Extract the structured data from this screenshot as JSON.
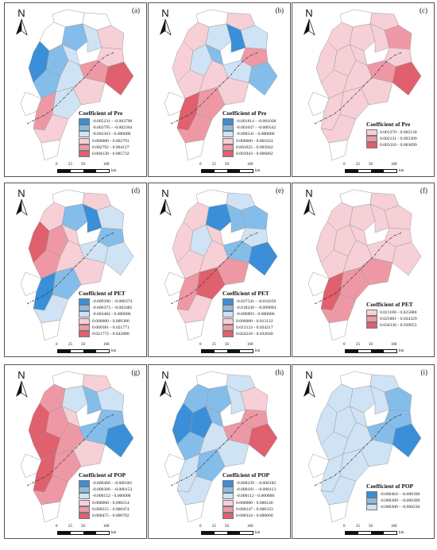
{
  "colors": {
    "blue_dark": "#3a8fd8",
    "blue_mid": "#85bdea",
    "blue_light": "#cfe3f5",
    "red_light": "#f6d0d6",
    "red_mid": "#ef98a5",
    "red_dark": "#e0606e",
    "blank": "#ffffff",
    "outline": "#9a9a9a",
    "river": "#333333"
  },
  "compass": "N",
  "scale_bar": {
    "ticks": [
      "0",
      "25",
      "50",
      "100"
    ],
    "unit": "km"
  },
  "panels": [
    {
      "label": "(a)",
      "legend_title": "Coefficient of Pre",
      "classes": [
        {
          "range": "-0.005231 - -0.003796",
          "color": "blue_dark"
        },
        {
          "range": "-0.003795 - -0.002364",
          "color": "blue_mid"
        },
        {
          "range": "-0.002363 - 0.000000",
          "color": "blue_light"
        },
        {
          "range": "0.000000 - 0.002791",
          "color": "red_light"
        },
        {
          "range": "0.002792 - 0.004127",
          "color": "red_mid"
        },
        {
          "range": "0.004128 - 0.005732",
          "color": "red_dark"
        }
      ],
      "regions": [
        "blank",
        "blank",
        "blue_mid",
        "blue_light",
        "blank",
        "blue_dark",
        "blue_mid",
        "blue_light",
        "red_light",
        "red_light",
        "blue_mid",
        "blue_light",
        "red_mid",
        "red_dark",
        "red_light",
        "blue_light",
        "red_mid",
        "red_light",
        "blank",
        "blank"
      ]
    },
    {
      "label": "(b)",
      "legend_title": "Coefficient of Pre",
      "classes": [
        {
          "range": "-0.001814 - -0.001038",
          "color": "blue_dark"
        },
        {
          "range": "-0.001037 - -0.000542",
          "color": "blue_mid"
        },
        {
          "range": "-0.000541 - 0.000000",
          "color": "blue_light"
        },
        {
          "range": "0.000000 - 0.001624",
          "color": "red_light"
        },
        {
          "range": "0.001625 - 0.003942",
          "color": "red_mid"
        },
        {
          "range": "0.003943 - 0.006802",
          "color": "red_dark"
        }
      ],
      "regions": [
        "blank",
        "red_light",
        "blue_light",
        "blue_dark",
        "red_light",
        "red_light",
        "blue_light",
        "blue_mid",
        "blue_light",
        "red_mid",
        "red_light",
        "red_light",
        "blue_light",
        "blue_mid",
        "red_light",
        "red_mid",
        "red_dark",
        "red_mid",
        "blank",
        "blank"
      ]
    },
    {
      "label": "(c)",
      "legend_title": "Coefficient of Pre",
      "classes": [
        {
          "range": "0.001270 - 0.002130",
          "color": "red_light"
        },
        {
          "range": "0.002131 - 0.003309",
          "color": "red_mid"
        },
        {
          "range": "0.003310 - 0.003699",
          "color": "red_dark"
        }
      ],
      "regions": [
        "blank",
        "red_light",
        "red_light",
        "red_light",
        "red_light",
        "red_light",
        "red_light",
        "red_light",
        "red_mid",
        "red_light",
        "red_light",
        "red_light",
        "red_mid",
        "red_dark",
        "red_light",
        "red_light",
        "red_light",
        "red_light",
        "blank",
        "blank"
      ]
    },
    {
      "label": "(d)",
      "legend_title": "Coefficient of PET",
      "classes": [
        {
          "range": "-0.009390 - -0.006374",
          "color": "blue_dark"
        },
        {
          "range": "-0.006373 - -0.003485",
          "color": "blue_mid"
        },
        {
          "range": "-0.003484 - 0.000000",
          "color": "blue_light"
        },
        {
          "range": "0.000000 - 0.009380",
          "color": "red_light"
        },
        {
          "range": "0.009381 - 0.021771",
          "color": "red_mid"
        },
        {
          "range": "0.021772 - 0.042888",
          "color": "red_dark"
        }
      ],
      "regions": [
        "blank",
        "red_light",
        "blue_mid",
        "blue_dark",
        "red_light",
        "red_dark",
        "red_mid",
        "red_light",
        "blue_light",
        "blue_mid",
        "red_mid",
        "red_light",
        "blue_light",
        "blue_light",
        "red_light",
        "blue_mid",
        "blue_dark",
        "blue_light",
        "blank",
        "blank"
      ]
    },
    {
      "label": "(e)",
      "legend_title": "Coefficient of PET",
      "classes": [
        {
          "range": "-0.027541 - -0.018250",
          "color": "blue_dark"
        },
        {
          "range": "-0.018249 - -0.009894",
          "color": "blue_mid"
        },
        {
          "range": "-0.009893 - 0.000000",
          "color": "blue_light"
        },
        {
          "range": "0.000000 - 0.013122",
          "color": "red_light"
        },
        {
          "range": "0.013123 - 0.024217",
          "color": "red_mid"
        },
        {
          "range": "0.024218 - 0.034940",
          "color": "red_dark"
        }
      ],
      "regions": [
        "blank",
        "blue_light",
        "blue_dark",
        "blue_mid",
        "red_light",
        "red_light",
        "blue_light",
        "red_light",
        "blue_mid",
        "blue_light",
        "red_light",
        "red_light",
        "blue_mid",
        "blue_dark",
        "red_mid",
        "red_dark",
        "red_mid",
        "red_light",
        "blank",
        "blank"
      ]
    },
    {
      "label": "(f)",
      "legend_title": "Coefficient of PET",
      "classes": [
        {
          "range": "0.021180 - 0.025880",
          "color": "red_light"
        },
        {
          "range": "0.025881 - 0.034329",
          "color": "red_mid"
        },
        {
          "range": "0.034330 - 0.039055",
          "color": "red_dark"
        }
      ],
      "regions": [
        "blank",
        "red_light",
        "red_light",
        "red_light",
        "red_light",
        "red_light",
        "red_light",
        "red_light",
        "red_light",
        "red_light",
        "red_light",
        "red_light",
        "red_light",
        "red_light",
        "red_mid",
        "red_mid",
        "red_dark",
        "red_mid",
        "blank",
        "blank"
      ]
    },
    {
      "label": "(g)",
      "legend_title": "Coefficient of POP",
      "classes": [
        {
          "range": "-0.000460 - -0.000301",
          "color": "blue_dark"
        },
        {
          "range": "-0.000300 - -0.000153",
          "color": "blue_mid"
        },
        {
          "range": "-0.000152 - 0.000000",
          "color": "blue_light"
        },
        {
          "range": "0.000000 - 0.000214",
          "color": "red_light"
        },
        {
          "range": "0.000215 - 0.000474",
          "color": "red_mid"
        },
        {
          "range": "0.000475 - 0.000702",
          "color": "red_dark"
        }
      ],
      "regions": [
        "blank",
        "red_light",
        "blue_light",
        "blue_mid",
        "red_mid",
        "red_dark",
        "red_mid",
        "red_light",
        "blue_light",
        "blue_mid",
        "red_dark",
        "red_mid",
        "blue_mid",
        "blue_dark",
        "red_light",
        "red_mid",
        "red_dark",
        "red_mid",
        "blank",
        "blank"
      ]
    },
    {
      "label": "(h)",
      "legend_title": "Coefficient of POP",
      "classes": [
        {
          "range": "-0.000239 - -0.000182",
          "color": "blue_dark"
        },
        {
          "range": "-0.000181 - -0.000113",
          "color": "blue_mid"
        },
        {
          "range": "-0.000112 - 0.000000",
          "color": "blue_light"
        },
        {
          "range": "0.000000 - 0.000146",
          "color": "red_light"
        },
        {
          "range": "0.000147 - 0.000333",
          "color": "red_mid"
        },
        {
          "range": "0.000334 - 0.000600",
          "color": "red_dark"
        }
      ],
      "regions": [
        "blank",
        "blue_light",
        "blue_mid",
        "blue_light",
        "blue_mid",
        "blue_dark",
        "blue_dark",
        "blue_mid",
        "red_light",
        "red_mid",
        "blue_mid",
        "blue_light",
        "red_mid",
        "red_dark",
        "blue_light",
        "blue_mid",
        "blue_light",
        "blue_light",
        "blank",
        "blank"
      ]
    },
    {
      "label": "(i)",
      "legend_title": "Coefficient of POP",
      "classes": [
        {
          "range": "-0.000464 - -0.000390",
          "color": "blue_dark"
        },
        {
          "range": "-0.000389 - -0.000309",
          "color": "blue_mid"
        },
        {
          "range": "-0.000308 - -0.000230",
          "color": "blue_light"
        }
      ],
      "regions": [
        "blank",
        "blue_light",
        "blue_light",
        "blue_light",
        "blue_light",
        "blue_light",
        "blue_light",
        "blue_light",
        "blue_mid",
        "blue_mid",
        "blue_light",
        "blue_light",
        "blue_mid",
        "blue_dark",
        "blue_light",
        "blue_light",
        "blue_light",
        "blue_light",
        "blank",
        "blank"
      ]
    }
  ]
}
